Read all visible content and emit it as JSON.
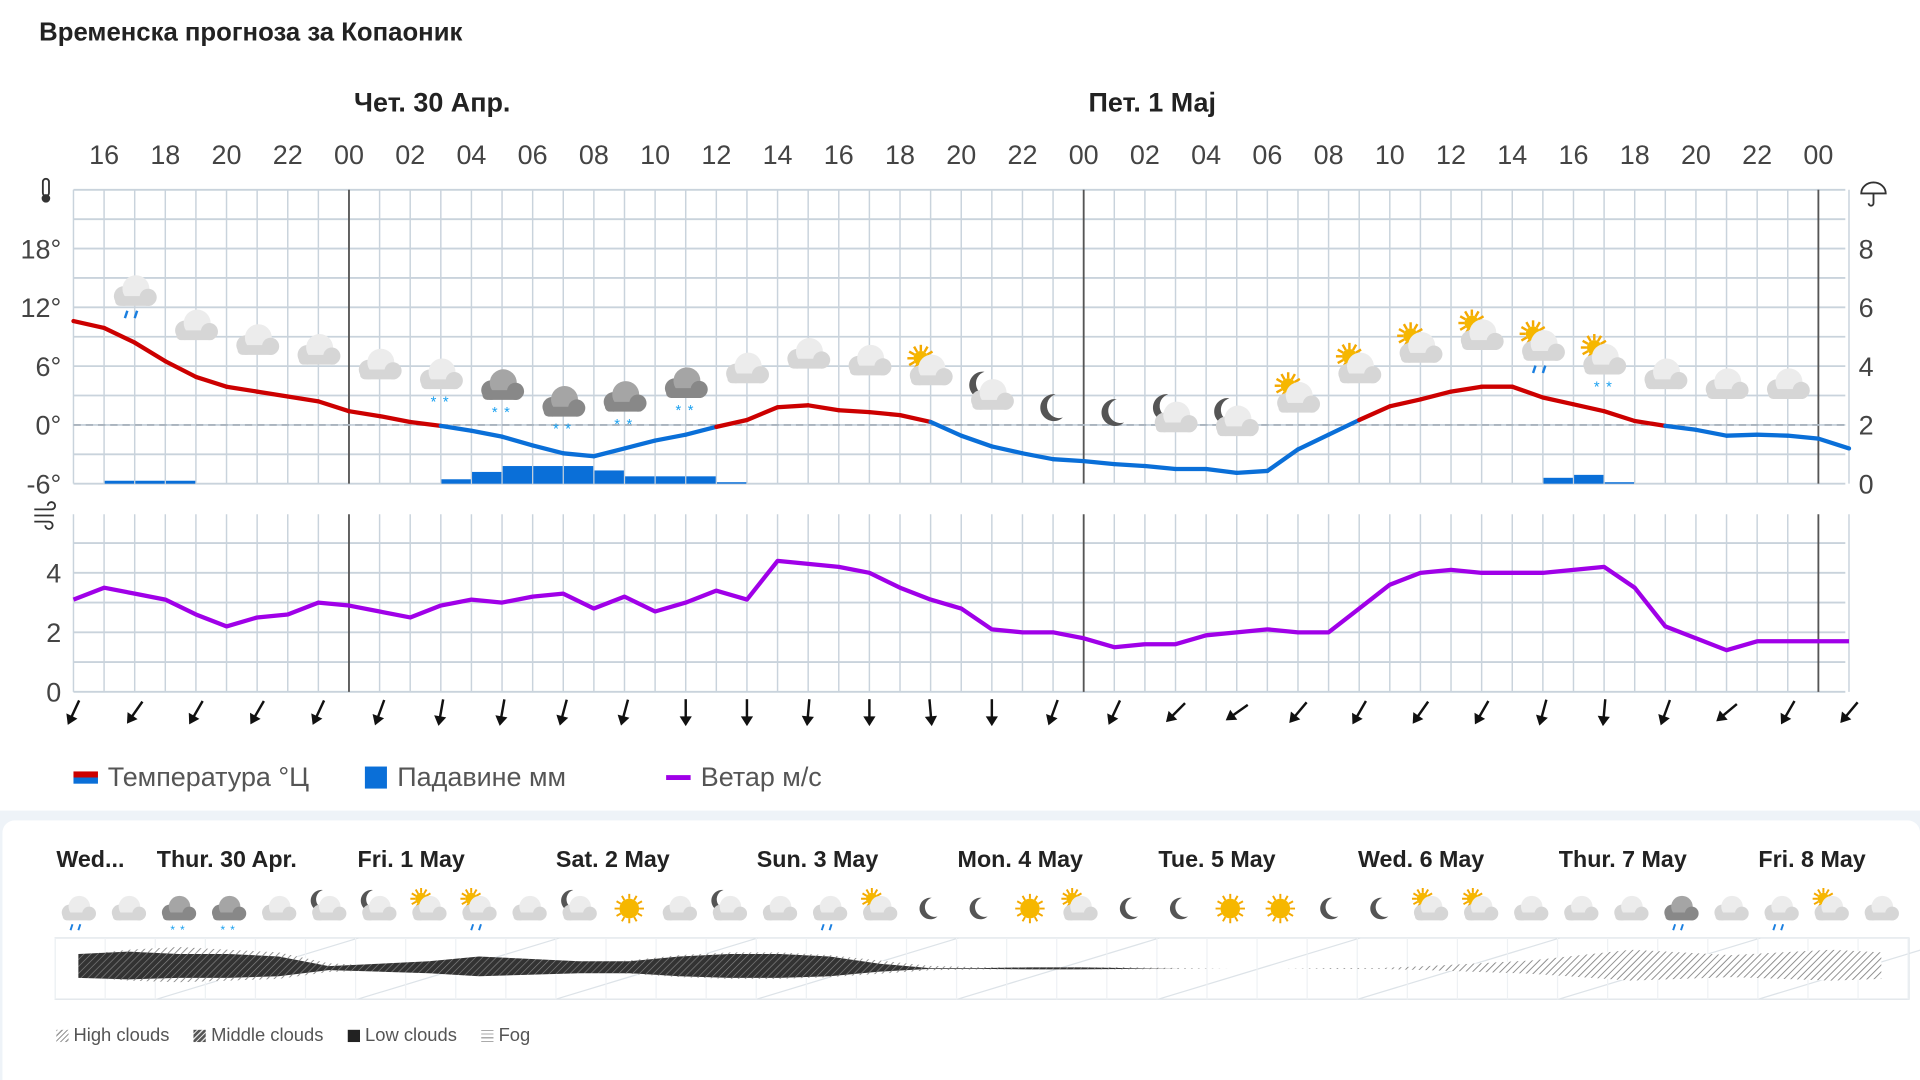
{
  "title": "Временска прогноза за Копаоник",
  "chart_data": {
    "type": "line",
    "day_labels": [
      "Чет. 30 Апр.",
      "Пет. 1 Мај"
    ],
    "hour_ticks": [
      "16",
      "18",
      "20",
      "22",
      "00",
      "02",
      "04",
      "06",
      "08",
      "10",
      "12",
      "14",
      "16",
      "18",
      "20",
      "22",
      "00",
      "02",
      "04",
      "06",
      "08",
      "10",
      "12",
      "14",
      "16",
      "18",
      "20",
      "22",
      "00"
    ],
    "temp_axis": {
      "ticks": [
        "18°",
        "12°",
        "6°",
        "0°",
        "-6°"
      ],
      "values": [
        18,
        12,
        6,
        0,
        -6
      ],
      "ylim": [
        -6,
        24
      ]
    },
    "precip_axis": {
      "ticks": [
        "8",
        "6",
        "4",
        "2",
        "0"
      ],
      "values": [
        8,
        6,
        4,
        2,
        0
      ],
      "ylim": [
        0,
        10
      ]
    },
    "wind_axis": {
      "ticks": [
        "4",
        "2",
        "0"
      ],
      "values": [
        4,
        2,
        0
      ],
      "ylim": [
        0,
        6
      ]
    },
    "start_hour": 15,
    "temperature": [
      10.6,
      9.9,
      8.4,
      6.5,
      4.9,
      3.9,
      3.4,
      2.9,
      2.4,
      1.4,
      0.9,
      0.3,
      -0.1,
      -0.6,
      -1.2,
      -2.1,
      -2.9,
      -3.2,
      -2.4,
      -1.6,
      -1.0,
      -0.2,
      0.5,
      1.8,
      2.0,
      1.5,
      1.3,
      1.0,
      0.3,
      -1.1,
      -2.2,
      -2.9,
      -3.5,
      -3.7,
      -4.0,
      -4.2,
      -4.5,
      -4.5,
      -4.9,
      -4.7,
      -2.5,
      -1.0,
      0.5,
      1.9,
      2.6,
      3.4,
      3.9,
      3.9,
      2.8,
      2.1,
      1.4,
      0.4,
      -0.1,
      -0.5,
      -1.1,
      -1.0,
      -1.1,
      -1.4,
      -2.4
    ],
    "precipitation": [
      0,
      0.1,
      0.1,
      0.1,
      0,
      0,
      0,
      0,
      0,
      0,
      0,
      0,
      0.15,
      0.4,
      0.6,
      0.6,
      0.6,
      0.45,
      0.25,
      0.25,
      0.25,
      0.05,
      0,
      0,
      0,
      0,
      0,
      0,
      0,
      0,
      0,
      0,
      0,
      0,
      0,
      0,
      0,
      0,
      0,
      0,
      0,
      0,
      0,
      0,
      0,
      0,
      0,
      0,
      0.2,
      0.3,
      0.05,
      0,
      0,
      0,
      0,
      0,
      0,
      0,
      0
    ],
    "wind": [
      3.1,
      3.5,
      3.3,
      3.1,
      2.6,
      2.2,
      2.5,
      2.6,
      3.0,
      2.9,
      2.7,
      2.5,
      2.9,
      3.1,
      3.0,
      3.2,
      3.3,
      2.8,
      3.2,
      2.7,
      3.0,
      3.4,
      3.1,
      4.4,
      4.3,
      4.2,
      4.0,
      3.5,
      3.1,
      2.8,
      2.1,
      2.0,
      2.0,
      1.8,
      1.5,
      1.6,
      1.6,
      1.9,
      2.0,
      2.1,
      2.0,
      2.0,
      2.8,
      3.6,
      4.0,
      4.1,
      4.0,
      4.0,
      4.0,
      4.1,
      4.2,
      3.5,
      2.2,
      1.8,
      1.4,
      1.7,
      1.7,
      1.7,
      1.7
    ],
    "wind_direction_arrows_deg": [
      25,
      35,
      30,
      30,
      25,
      20,
      10,
      10,
      15,
      15,
      0,
      0,
      5,
      0,
      -5,
      0,
      20,
      25,
      45,
      55,
      40,
      30,
      35,
      30,
      15,
      5,
      20,
      50,
      30,
      40
    ],
    "weather_icons": [
      "cloud-rain",
      "cloud",
      "cloud",
      "cloud",
      "cloud",
      "cloud-snow",
      "dark-cloud-snow",
      "dark-cloud-snow",
      "dark-cloud-snow",
      "dark-cloud-snow",
      "cloud",
      "cloud",
      "cloud",
      "sun-cloud",
      "moon-cloud",
      "moon",
      "moon",
      "moon-cloud",
      "moon-cloud",
      "sun-cloud",
      "sun-cloud",
      "sun-cloud",
      "sun-cloud",
      "sun-cloud-rain",
      "sun-cloud-snow",
      "cloud",
      "cloud",
      "cloud"
    ],
    "colors": {
      "temp_positive": "#cc0000",
      "temp_negative": "#0a6fd8",
      "precip": "#0a6fd8",
      "wind": "#a000e8"
    },
    "legend": [
      "Температура °Ц",
      "Падавине мм",
      "Ветар м/с"
    ]
  },
  "meteogram": {
    "days": [
      "Wed...",
      "Thur. 30 Apr.",
      "Fri. 1 May",
      "Sat. 2 May",
      "Sun. 3 May",
      "Mon. 4 May",
      "Tue. 5 May",
      "Wed. 6 May",
      "Thur. 7 May",
      "Fri. 8 May"
    ],
    "icons": [
      "cloud-rain",
      "cloud",
      "dark-cloud-snow",
      "dark-cloud-snow",
      "cloud",
      "moon-cloud",
      "moon-cloud",
      "sun-cloud",
      "sun-cloud-rain",
      "cloud",
      "moon-cloud",
      "sun",
      "cloud",
      "moon-cloud",
      "cloud",
      "cloud-rain",
      "sun-cloud",
      "moon",
      "moon",
      "sun",
      "sun-cloud",
      "moon",
      "moon",
      "sun",
      "sun",
      "moon",
      "moon",
      "sun-cloud",
      "sun-cloud",
      "cloud",
      "cloud",
      "cloud",
      "dark-cloud-rain",
      "cloud",
      "cloud-rain",
      "sun-cloud",
      "cloud"
    ],
    "high_clouds": [
      0.5,
      0.7,
      0.8,
      0.7,
      0.6,
      0.2,
      0.1,
      0.2,
      0.3,
      0.2,
      0.2,
      0.3,
      0.5,
      0.6,
      0.6,
      0.5,
      0.3,
      0.1,
      0.05,
      0.05,
      0.05,
      0.05,
      0.02,
      0,
      0,
      0.02,
      0.02,
      0.1,
      0.2,
      0.3,
      0.5,
      0.7,
      0.6,
      0.5,
      0.6,
      0.7,
      0.6
    ],
    "low_clouds": [
      0.6,
      0.7,
      0.6,
      0.6,
      0.5,
      0.1,
      0.2,
      0.3,
      0.5,
      0.4,
      0.3,
      0.3,
      0.5,
      0.6,
      0.6,
      0.5,
      0.2,
      0.02,
      0.02,
      0.05,
      0.05,
      0.02,
      0,
      0,
      0,
      0,
      0,
      0,
      0,
      0,
      0,
      0,
      0,
      0,
      0,
      0,
      0
    ],
    "legend": [
      "High clouds",
      "Middle clouds",
      "Low clouds",
      "Fog"
    ]
  }
}
